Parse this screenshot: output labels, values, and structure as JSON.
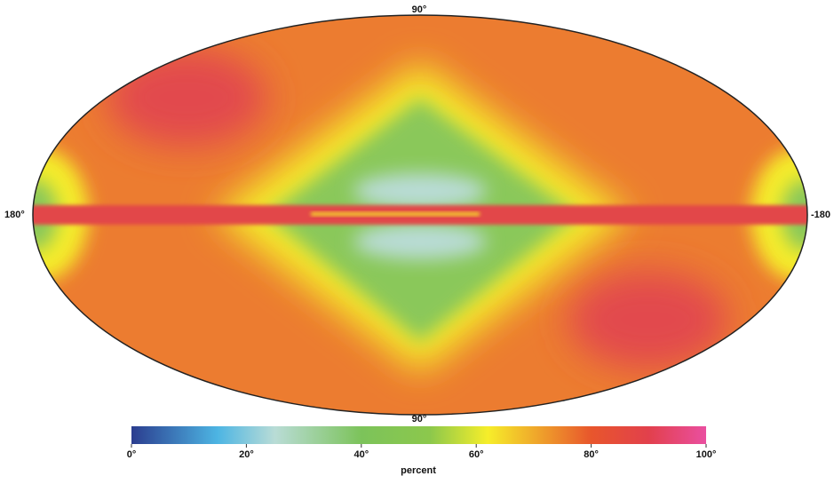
{
  "chart_data": {
    "type": "sky-map",
    "map_labels": {
      "top": "90°",
      "bottom": "90°",
      "left": "180°",
      "right": "-180"
    },
    "colorbar": {
      "label": "percent",
      "lim": [
        0,
        100
      ],
      "ticks": [
        {
          "value": 0,
          "label": "0°"
        },
        {
          "value": 20,
          "label": "20°"
        },
        {
          "value": 40,
          "label": "40°"
        },
        {
          "value": 60,
          "label": "60°"
        },
        {
          "value": 80,
          "label": "80°"
        },
        {
          "value": 100,
          "label": "100°"
        }
      ],
      "stops": [
        {
          "value": 0,
          "color": "#2b3d8f"
        },
        {
          "value": 15,
          "color": "#4db5e3"
        },
        {
          "value": 25,
          "color": "#b9dcd6"
        },
        {
          "value": 40,
          "color": "#7cc35a"
        },
        {
          "value": 52,
          "color": "#8cc84c"
        },
        {
          "value": 62,
          "color": "#f6ee2a"
        },
        {
          "value": 80,
          "color": "#e8562c"
        },
        {
          "value": 90,
          "color": "#e2404c"
        },
        {
          "value": 100,
          "color": "#ea4fa0"
        }
      ]
    }
  }
}
